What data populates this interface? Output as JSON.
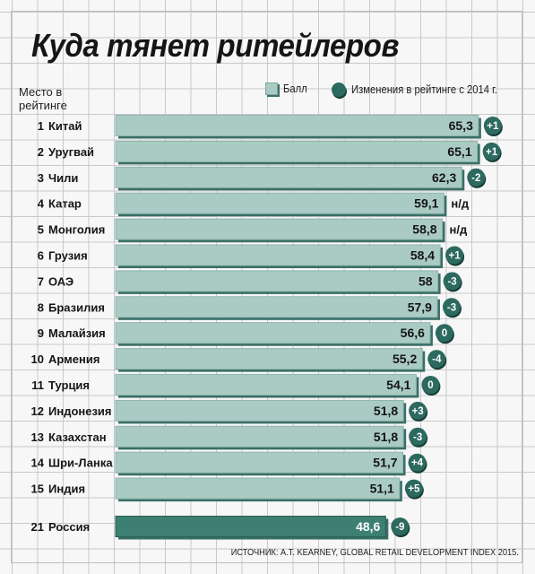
{
  "title": "Куда тянет ритейлеров",
  "rank_header": "Место в рейтинге",
  "legend": {
    "score_label": "Балл",
    "change_label": "Изменения в рейтинге с 2014 г."
  },
  "source": "ИСТОЧНИК: A.T. KEARNEY, GLOBAL RETAIL DEVELOPMENT INDEX 2015.",
  "colors": {
    "bar_fill": "#a9cbc3",
    "bar_shadow": "#3a6e66",
    "highlight_fill": "#3d7f73",
    "badge": "#2c6a5f"
  },
  "chart_data": {
    "type": "bar",
    "orientation": "horizontal",
    "title": "Куда тянет ритейлеров",
    "xlabel": "",
    "ylabel": "Место в рейтинге",
    "legend": [
      "Балл",
      "Изменения в рейтинге с 2014 г."
    ],
    "legend_position": "top",
    "grid": true,
    "rows": [
      {
        "rank": "1",
        "country": "Китай",
        "value": 65.3,
        "label": "65,3",
        "change": "+1"
      },
      {
        "rank": "2",
        "country": "Уругвай",
        "value": 65.1,
        "label": "65,1",
        "change": "+1"
      },
      {
        "rank": "3",
        "country": "Чили",
        "value": 62.3,
        "label": "62,3",
        "change": "-2"
      },
      {
        "rank": "4",
        "country": "Катар",
        "value": 59.1,
        "label": "59,1",
        "change": "н/д"
      },
      {
        "rank": "5",
        "country": "Монголия",
        "value": 58.8,
        "label": "58,8",
        "change": "н/д"
      },
      {
        "rank": "6",
        "country": "Грузия",
        "value": 58.4,
        "label": "58,4",
        "change": "+1"
      },
      {
        "rank": "7",
        "country": "ОАЭ",
        "value": 58,
        "label": "58",
        "change": "-3"
      },
      {
        "rank": "8",
        "country": "Бразилия",
        "value": 57.9,
        "label": "57,9",
        "change": "-3"
      },
      {
        "rank": "9",
        "country": "Малайзия",
        "value": 56.6,
        "label": "56,6",
        "change": "0"
      },
      {
        "rank": "10",
        "country": "Армения",
        "value": 55.2,
        "label": "55,2",
        "change": "-4"
      },
      {
        "rank": "11",
        "country": "Турция",
        "value": 54.1,
        "label": "54,1",
        "change": "0"
      },
      {
        "rank": "12",
        "country": "Индонезия",
        "value": 51.8,
        "label": "51,8",
        "change": "+3"
      },
      {
        "rank": "13",
        "country": "Казахстан",
        "value": 51.8,
        "label": "51,8",
        "change": "-3"
      },
      {
        "rank": "14",
        "country": "Шри-Ланка",
        "value": 51.7,
        "label": "51,7",
        "change": "+4"
      },
      {
        "rank": "15",
        "country": "Индия",
        "value": 51.1,
        "label": "51,1",
        "change": "+5"
      },
      {
        "rank": "21",
        "country": "Россия",
        "value": 48.6,
        "label": "48,6",
        "change": "-9",
        "highlight": true
      }
    ]
  }
}
